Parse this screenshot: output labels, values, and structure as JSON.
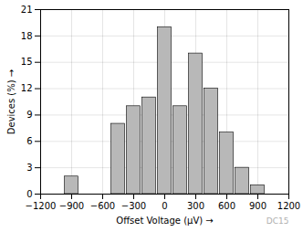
{
  "chart_data": {
    "type": "histogram",
    "bins": [
      -1125,
      -975,
      -825,
      -675,
      -525,
      -375,
      -225,
      -75,
      75,
      225,
      375,
      525,
      675,
      825,
      975,
      1125
    ],
    "values": [
      0,
      2,
      0,
      0,
      8,
      10,
      11,
      19,
      10,
      16,
      12,
      7,
      3,
      1,
      0
    ],
    "color": "#b8b8b8",
    "xlabel": "Offset Voltage (μV)",
    "ylabel": "Devices (%)",
    "annotations": [
      "DC15"
    ],
    "xlim": [
      -1200,
      1200
    ],
    "ylim": [
      0,
      21
    ],
    "xticks": [
      -1200,
      -900,
      -600,
      -300,
      0,
      300,
      600,
      900,
      1200
    ],
    "yticks": [
      0,
      3,
      6,
      9,
      12,
      15,
      18,
      21
    ],
    "grid": true
  }
}
